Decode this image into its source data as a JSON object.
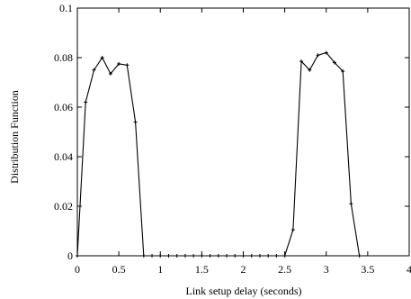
{
  "chart_data": {
    "type": "line",
    "xlabel": "Link setup delay (seconds)",
    "ylabel": "Distribution Function",
    "xlim": [
      0,
      4
    ],
    "ylim": [
      0,
      0.1
    ],
    "grid": false,
    "x_ticks": [
      0,
      0.5,
      1,
      1.5,
      2,
      2.5,
      3,
      3.5,
      4
    ],
    "x_tick_labels": [
      "0",
      "0.5",
      "1",
      "1.5",
      "2",
      "2.5",
      "3",
      "3.5",
      "4"
    ],
    "y_ticks": [
      0,
      0.02,
      0.04,
      0.06,
      0.08,
      0.1
    ],
    "y_tick_labels": [
      "0",
      "0.02",
      "0.04",
      "0.06",
      "0.08",
      "0.1"
    ],
    "series": [
      {
        "x": [
          0,
          0.1,
          0.2,
          0.3,
          0.4,
          0.5,
          0.6,
          0.7,
          0.8,
          0.9,
          1.0,
          1.1,
          1.2,
          1.3,
          1.4,
          1.5,
          1.6,
          1.7,
          1.8,
          1.9,
          2.0,
          2.1,
          2.2,
          2.3,
          2.4,
          2.5,
          2.6,
          2.7,
          2.8,
          2.9,
          3.0,
          3.1,
          3.2,
          3.3,
          3.4
        ],
        "y": [
          0,
          0.062,
          0.075,
          0.08,
          0.0735,
          0.0775,
          0.077,
          0.054,
          0,
          0,
          0,
          0,
          0,
          0,
          0,
          0,
          0,
          0,
          0,
          0,
          0,
          0,
          0,
          0,
          0,
          0,
          0.0105,
          0.0785,
          0.075,
          0.081,
          0.082,
          0.078,
          0.0745,
          0.021,
          0
        ]
      }
    ]
  }
}
